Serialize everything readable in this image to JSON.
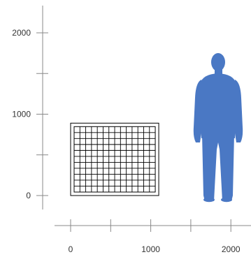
{
  "diagram": {
    "y_axis": {
      "ticks": [
        {
          "value": 2000,
          "label": "2000"
        },
        {
          "value": 1500,
          "label": ""
        },
        {
          "value": 1000,
          "label": "1000"
        },
        {
          "value": 500,
          "label": ""
        },
        {
          "value": 0,
          "label": "0"
        }
      ]
    },
    "x_axis": {
      "ticks": [
        {
          "value": 0,
          "label": "0"
        },
        {
          "value": 500,
          "label": ""
        },
        {
          "value": 1000,
          "label": "1000"
        },
        {
          "value": 1500,
          "label": ""
        },
        {
          "value": 2000,
          "label": "2000"
        }
      ]
    },
    "grid_panel": {
      "width": 1100,
      "height": 890,
      "columns": 14,
      "rows": 11
    },
    "human_figure": {
      "height": 1820,
      "color": "#4a78c4",
      "icon": "person-silhouette-icon"
    },
    "colors": {
      "axis": "#888888",
      "panel_stroke": "#000000",
      "figure": "#4a78c4"
    }
  }
}
